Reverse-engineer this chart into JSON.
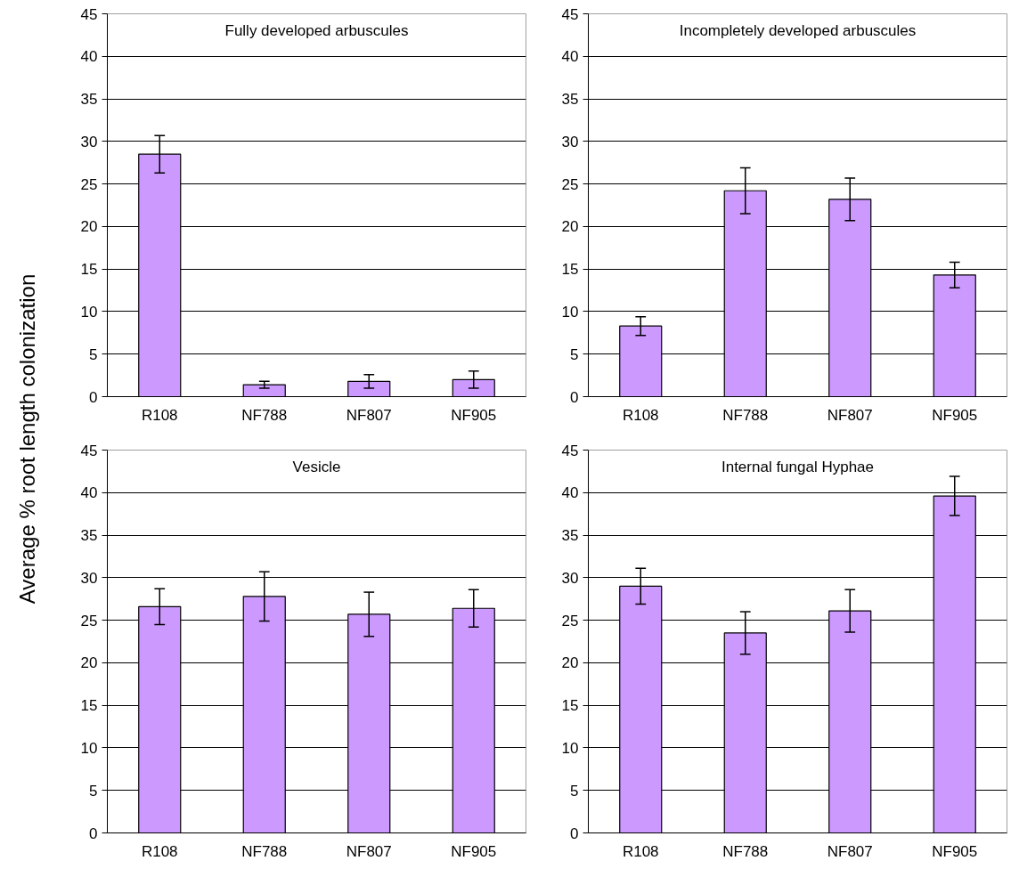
{
  "chart_data": [
    {
      "type": "bar",
      "title": "Fully developed arbuscules",
      "ylabel": "Average % root length colonization",
      "categories": [
        "R108",
        "NF788",
        "NF807",
        "NF905"
      ],
      "values": [
        28.5,
        1.4,
        1.8,
        2.0
      ],
      "errors": [
        2.2,
        0.4,
        0.8,
        1.0
      ],
      "color": "#cc99ff",
      "ylim": [
        0,
        45
      ],
      "yticks": [
        0,
        5,
        10,
        15,
        20,
        25,
        30,
        35,
        40,
        45
      ],
      "grid": "y"
    },
    {
      "type": "bar",
      "title": "Incompletely developed arbuscules",
      "categories": [
        "R108",
        "NF788",
        "NF807",
        "NF905"
      ],
      "values": [
        8.3,
        24.2,
        23.2,
        14.3
      ],
      "errors": [
        1.1,
        2.7,
        2.5,
        1.5
      ],
      "color": "#cc99ff",
      "ylim": [
        0,
        45
      ],
      "yticks": [
        0,
        5,
        10,
        15,
        20,
        25,
        30,
        35,
        40,
        45
      ],
      "grid": "y"
    },
    {
      "type": "bar",
      "title": "Vesicle",
      "categories": [
        "R108",
        "NF788",
        "NF807",
        "NF905"
      ],
      "values": [
        26.6,
        27.8,
        25.7,
        26.4
      ],
      "errors": [
        2.1,
        2.9,
        2.6,
        2.2
      ],
      "color": "#cc99ff",
      "ylim": [
        0,
        45
      ],
      "yticks": [
        0,
        5,
        10,
        15,
        20,
        25,
        30,
        35,
        40,
        45
      ],
      "grid": "y"
    },
    {
      "type": "bar",
      "title": "Internal fungal Hyphae",
      "categories": [
        "R108",
        "NF788",
        "NF807",
        "NF905"
      ],
      "values": [
        29.0,
        23.5,
        26.1,
        39.6
      ],
      "errors": [
        2.1,
        2.5,
        2.5,
        2.3
      ],
      "color": "#cc99ff",
      "ylim": [
        0,
        45
      ],
      "yticks": [
        0,
        5,
        10,
        15,
        20,
        25,
        30,
        35,
        40,
        45
      ],
      "grid": "y"
    }
  ]
}
